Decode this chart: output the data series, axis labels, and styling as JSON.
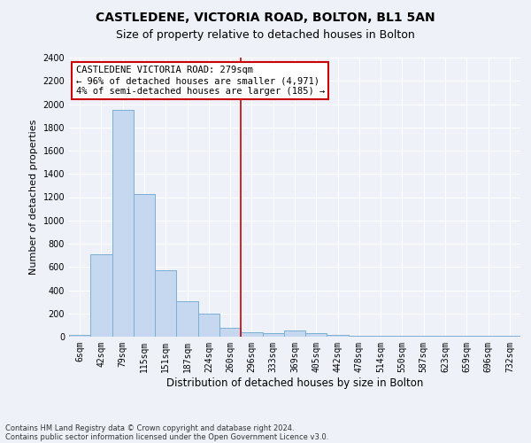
{
  "title1": "CASTLEDENE, VICTORIA ROAD, BOLTON, BL1 5AN",
  "title2": "Size of property relative to detached houses in Bolton",
  "xlabel": "Distribution of detached houses by size in Bolton",
  "ylabel": "Number of detached properties",
  "bar_labels": [
    "6sqm",
    "42sqm",
    "79sqm",
    "115sqm",
    "151sqm",
    "187sqm",
    "224sqm",
    "260sqm",
    "296sqm",
    "333sqm",
    "369sqm",
    "405sqm",
    "442sqm",
    "478sqm",
    "514sqm",
    "550sqm",
    "587sqm",
    "623sqm",
    "659sqm",
    "696sqm",
    "732sqm"
  ],
  "bar_values": [
    15,
    710,
    1950,
    1225,
    575,
    305,
    200,
    80,
    40,
    30,
    50,
    30,
    15,
    10,
    5,
    5,
    5,
    5,
    5,
    5,
    5
  ],
  "bar_color": "#c5d8f0",
  "bar_edge_color": "#7aafd4",
  "vline_color": "#cc0000",
  "vline_x_index": 8.0,
  "annotation_text": "CASTLEDENE VICTORIA ROAD: 279sqm\n← 96% of detached houses are smaller (4,971)\n4% of semi-detached houses are larger (185) →",
  "annotation_box_color": "white",
  "annotation_box_edge_color": "#cc0000",
  "ylim": [
    0,
    2400
  ],
  "yticks": [
    0,
    200,
    400,
    600,
    800,
    1000,
    1200,
    1400,
    1600,
    1800,
    2000,
    2200,
    2400
  ],
  "footer1": "Contains HM Land Registry data © Crown copyright and database right 2024.",
  "footer2": "Contains public sector information licensed under the Open Government Licence v3.0.",
  "bg_color": "#eef2f8",
  "grid_color": "#ffffff",
  "title1_fontsize": 10,
  "title2_fontsize": 9,
  "tick_fontsize": 7,
  "ylabel_fontsize": 8,
  "xlabel_fontsize": 8.5,
  "annotation_fontsize": 7.5,
  "footer_fontsize": 6
}
